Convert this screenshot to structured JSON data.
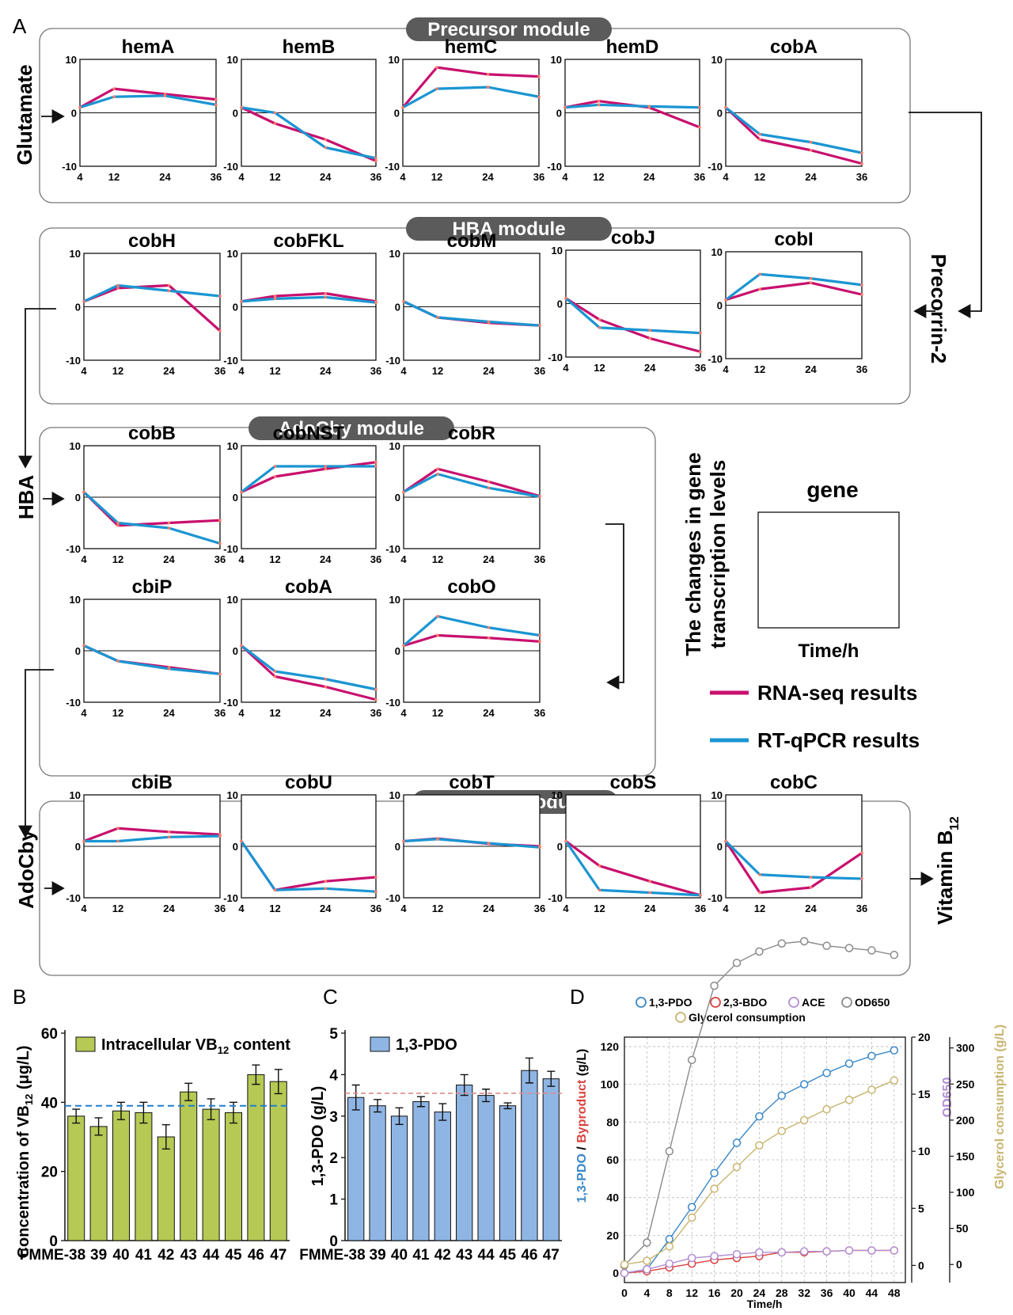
{
  "panel_letters": {
    "a": "A",
    "b": "B",
    "c": "C",
    "d": "D"
  },
  "modules": {
    "precursor": "Precursor module",
    "hba": "HBA module",
    "adocby": "AdoCby module",
    "adocbl": "AdoCbl module"
  },
  "side_labels": {
    "glutamate": "Glutamate",
    "precorrin": "Precorrin-2",
    "hba": "HBA",
    "adocby": "AdoCby",
    "vitamin": "Vitamin B",
    "vitamin_sub": "12"
  },
  "legend_a": {
    "ylabel_line1": "The changes in gene",
    "ylabel_line2": "transcription levels",
    "gene": "gene",
    "xlabel": "Time/h",
    "rna": "RNA-seq results",
    "qpcr": "RT-qPCR results",
    "rna_color": "#c8106e",
    "qpcr_color": "#1a95d2"
  },
  "chart_data": [
    {
      "type": "line",
      "x": [
        4,
        12,
        24,
        36
      ],
      "yticks": [
        "10",
        "0",
        "-10"
      ],
      "ylim": [
        -10,
        10
      ],
      "series_names": [
        "RNA-seq results",
        "RT-qPCR results"
      ],
      "genes": [
        {
          "title": "hemA",
          "rna": [
            1,
            4.5,
            3.5,
            2.5
          ],
          "qpcr": [
            1,
            3,
            3.2,
            1.5
          ]
        },
        {
          "title": "hemB",
          "rna": [
            1,
            -2,
            -5,
            -9
          ],
          "qpcr": [
            1,
            0,
            -6.5,
            -8.5
          ]
        },
        {
          "title": "hemC",
          "rna": [
            1,
            8.5,
            7.2,
            6.8
          ],
          "qpcr": [
            1,
            4.5,
            4.8,
            3
          ]
        },
        {
          "title": "hemD",
          "rna": [
            1,
            2.2,
            1,
            -2.7
          ],
          "qpcr": [
            1,
            1.5,
            1.2,
            1
          ]
        },
        {
          "title": "cobA",
          "rna": [
            1,
            -5,
            -7,
            -9.5
          ],
          "qpcr": [
            1,
            -4,
            -5.5,
            -7.5
          ]
        },
        {
          "title": "cobH",
          "rna": [
            1,
            3.5,
            4,
            -4.5
          ],
          "qpcr": [
            1,
            4,
            3,
            2
          ]
        },
        {
          "title": "cobFKL",
          "rna": [
            1,
            2,
            2.5,
            1
          ],
          "qpcr": [
            1,
            1.5,
            1.8,
            0.8
          ]
        },
        {
          "title": "cobM",
          "rna": [
            1,
            -2,
            -3,
            -3.5
          ],
          "qpcr": [
            1,
            -2,
            -2.8,
            -3.5
          ]
        },
        {
          "title": "cobJ",
          "rna": [
            1,
            -3,
            -6.5,
            -9
          ],
          "qpcr": [
            1,
            -4.5,
            -5,
            -5.5
          ]
        },
        {
          "title": "cobI",
          "rna": [
            1,
            3,
            4.2,
            2
          ],
          "qpcr": [
            1,
            5.8,
            5,
            3.8
          ]
        },
        {
          "title": "cobB",
          "rna": [
            1,
            -5.5,
            -5,
            -4.5
          ],
          "qpcr": [
            1,
            -5,
            -6,
            -9
          ]
        },
        {
          "title": "cobNST",
          "rna": [
            1,
            4,
            5.5,
            6.8
          ],
          "qpcr": [
            1,
            6,
            6,
            6
          ]
        },
        {
          "title": "cobR",
          "rna": [
            1,
            5.5,
            3,
            0.2
          ],
          "qpcr": [
            1,
            4.5,
            1.8,
            0.1
          ]
        },
        {
          "title": "cbiP",
          "rna": [
            1,
            -2,
            -3.2,
            -4.5
          ],
          "qpcr": [
            1,
            -2,
            -3.5,
            -4.5
          ]
        },
        {
          "title": "cobA",
          "rna": [
            1,
            -5,
            -7,
            -9.5
          ],
          "qpcr": [
            1,
            -4,
            -5.5,
            -7.5
          ]
        },
        {
          "title": "cobO",
          "rna": [
            1,
            3,
            2.5,
            1.8
          ],
          "qpcr": [
            1,
            6.7,
            4.5,
            3
          ]
        },
        {
          "title": "cbiB",
          "rna": [
            1,
            3.5,
            2.8,
            2.3
          ],
          "qpcr": [
            1,
            1,
            1.8,
            2
          ]
        },
        {
          "title": "cobU",
          "rna": [
            1,
            -8.5,
            -6.8,
            -6
          ],
          "qpcr": [
            1,
            -8.5,
            -8.2,
            -8.8
          ]
        },
        {
          "title": "cobT",
          "rna": [
            1,
            1.5,
            0.5,
            0
          ],
          "qpcr": [
            1,
            1.4,
            0.6,
            -0.2
          ]
        },
        {
          "title": "cobS",
          "rna": [
            1,
            -3.8,
            -6.8,
            -9.5
          ],
          "qpcr": [
            1,
            -8.5,
            -9,
            -9.5
          ]
        },
        {
          "title": "cobC",
          "rna": [
            1,
            -9,
            -8,
            -1.3
          ],
          "qpcr": [
            1,
            -5.5,
            -6,
            -6.3
          ]
        }
      ]
    },
    {
      "type": "bar",
      "legend": "Intracellular VB",
      "legend_sub": "12",
      "legend_tail": " content",
      "ylabel": "Concentration of VB",
      "ylabel_sub": "12",
      "ylabel_tail": " (μg/L)",
      "categories": [
        "FMME-38",
        "39",
        "40",
        "41",
        "42",
        "43",
        "44",
        "45",
        "46",
        "47"
      ],
      "values": [
        36,
        33,
        37.5,
        37,
        30,
        43,
        38,
        37,
        48,
        46
      ],
      "errors": [
        2,
        2.5,
        2.5,
        3,
        3.5,
        2.5,
        3,
        3,
        2.8,
        3.5
      ],
      "reference": 39,
      "ylim": [
        0,
        60
      ],
      "yticks": [
        "0",
        "20",
        "40",
        "60"
      ],
      "color": "#b5c954"
    },
    {
      "type": "bar",
      "legend": "1,3-PDO",
      "ylabel": "1,3-PDO (g/L)",
      "categories": [
        "FMME-38",
        "39",
        "40",
        "41",
        "42",
        "43",
        "44",
        "45",
        "46",
        "47"
      ],
      "values": [
        3.45,
        3.25,
        3.0,
        3.35,
        3.1,
        3.75,
        3.5,
        3.25,
        4.1,
        3.9
      ],
      "errors": [
        0.3,
        0.15,
        0.2,
        0.12,
        0.2,
        0.25,
        0.15,
        0.07,
        0.3,
        0.18
      ],
      "reference": 3.55,
      "ylim": [
        0,
        5
      ],
      "yticks": [
        "0",
        "1",
        "2",
        "3",
        "4",
        "5"
      ],
      "color": "#8fb5e4"
    },
    {
      "type": "line",
      "x": [
        0,
        4,
        8,
        12,
        16,
        20,
        24,
        28,
        32,
        36,
        40,
        44,
        48
      ],
      "xticks": [
        "0",
        "4",
        "8",
        "12",
        "16",
        "20",
        "24",
        "28",
        "32",
        "36",
        "40",
        "44",
        "48"
      ],
      "xlabel": "Time/h",
      "ylabel_parts": [
        "1,3-PDO",
        " / ",
        "Byproduct",
        " (g/L)"
      ],
      "ylabel2": "OD650",
      "ylabel3": "Glycerol consumption (g/L)",
      "yticks_left": [
        "0",
        "20",
        "40",
        "60",
        "80",
        "100",
        "120"
      ],
      "yticks_od": [
        "0",
        "5",
        "10",
        "15",
        "20"
      ],
      "yticks_gly": [
        "0",
        "50",
        "100",
        "150",
        "200",
        "250",
        "300"
      ],
      "series": [
        {
          "name": "1,3-PDO",
          "axis": "left",
          "color": "#3a87c8",
          "values": [
            0,
            2,
            18,
            35,
            53,
            69,
            83,
            94,
            100,
            106,
            111,
            115,
            118
          ]
        },
        {
          "name": "2,3-BDO",
          "axis": "left",
          "color": "#d9413f",
          "values": [
            0,
            1,
            3,
            5,
            7,
            8,
            9,
            11,
            11,
            11.5,
            12,
            12,
            12
          ]
        },
        {
          "name": "ACE",
          "axis": "left",
          "color": "#b18ed3",
          "values": [
            0,
            2,
            5,
            8,
            9,
            10,
            11,
            11,
            11.5,
            11.5,
            12,
            12,
            12
          ]
        },
        {
          "name": "OD650",
          "axis": "od",
          "color": "#8a8a8a",
          "values": [
            0,
            2,
            10,
            18,
            24.5,
            26.5,
            27.5,
            28.2,
            28.4,
            28,
            27.8,
            27.6,
            27.2
          ]
        },
        {
          "name": "Glycerol consumption",
          "axis": "gly",
          "color": "#c9b470",
          "values": [
            0,
            5,
            25,
            65,
            105,
            135,
            165,
            185,
            200,
            215,
            228,
            242,
            255
          ]
        }
      ]
    }
  ]
}
